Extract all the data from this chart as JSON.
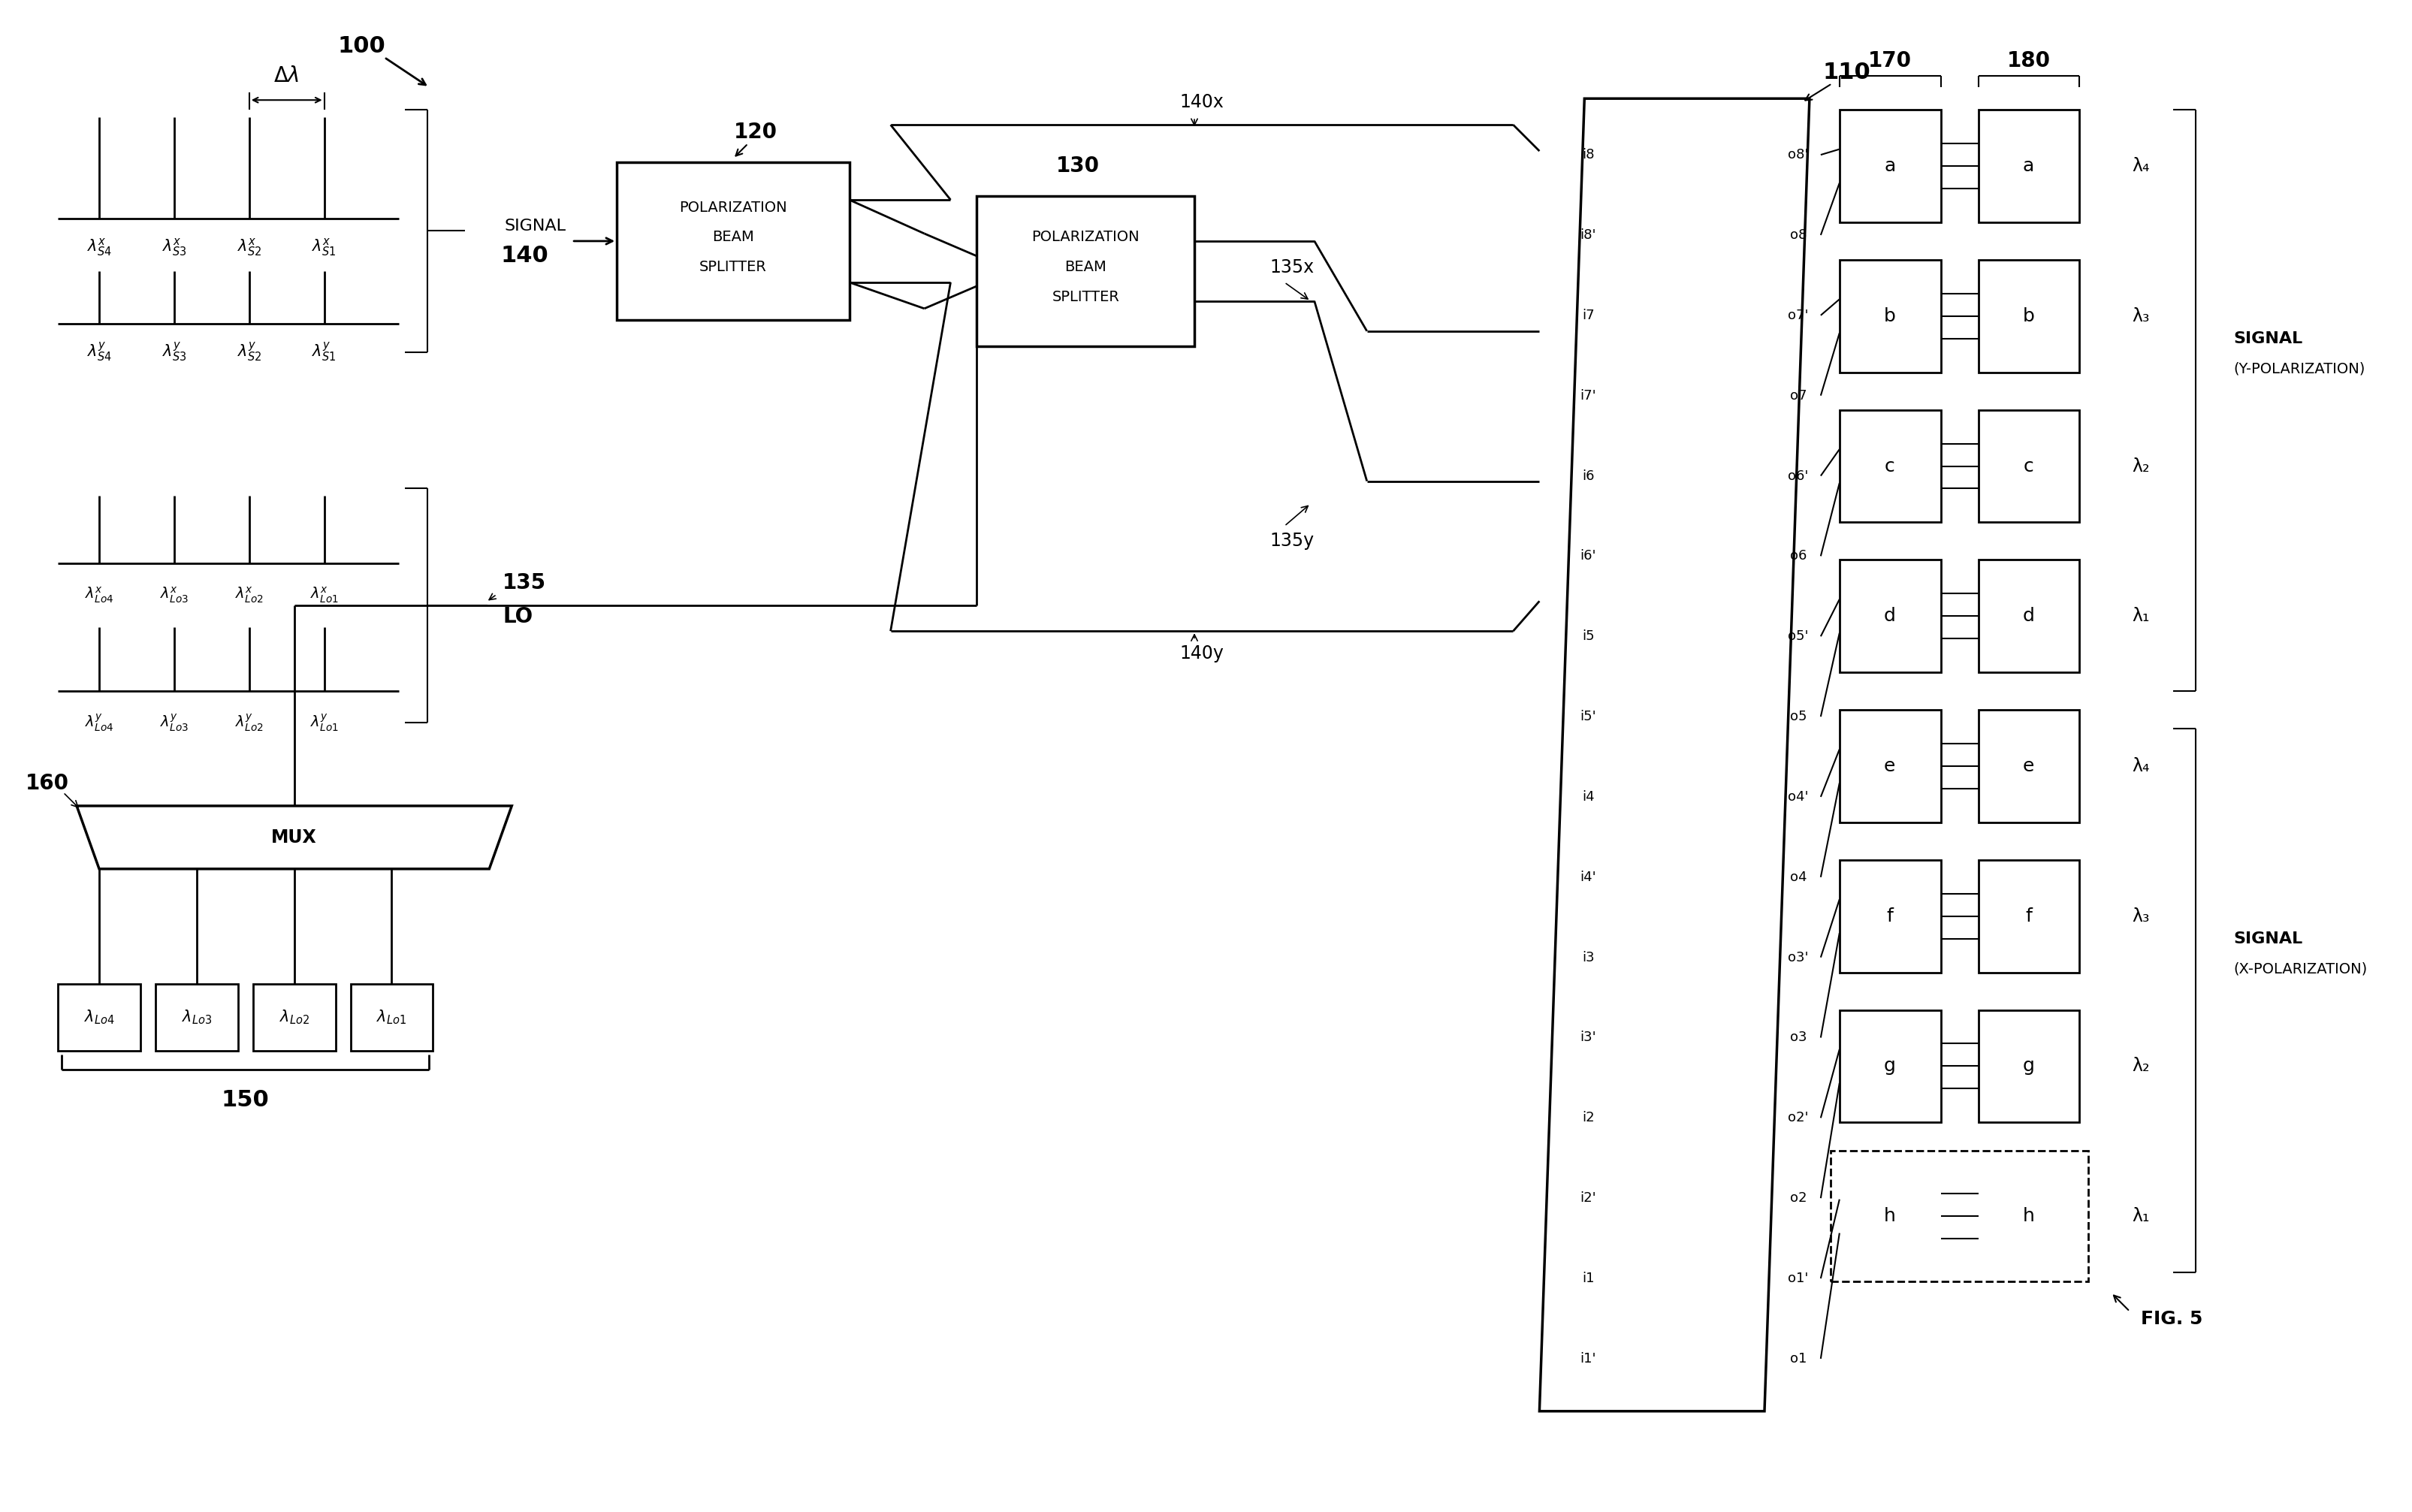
{
  "fig_width": 32.11,
  "fig_height": 20.13,
  "bg_color": "#ffffff",
  "chip_inputs": [
    "i8",
    "i8'",
    "i7",
    "i7'",
    "i6",
    "i6'",
    "i5",
    "i5'",
    "i4",
    "i4'",
    "i3",
    "i3'",
    "i2",
    "i2'",
    "i1",
    "i1'"
  ],
  "chip_outputs": [
    "o8'",
    "o8",
    "o7'",
    "o7",
    "o6'",
    "o6",
    "o5'",
    "o5",
    "o4'",
    "o4",
    "o3'",
    "o3",
    "o2'",
    "o2",
    "o1'",
    "o1"
  ],
  "block_letters": [
    "a",
    "b",
    "c",
    "d",
    "e",
    "f",
    "g",
    "h"
  ],
  "lambda_right": [
    "λ₄",
    "λ₃",
    "λ₂",
    "λ₁",
    "λ₄",
    "λ₃",
    "λ₂",
    "λ₁"
  ]
}
